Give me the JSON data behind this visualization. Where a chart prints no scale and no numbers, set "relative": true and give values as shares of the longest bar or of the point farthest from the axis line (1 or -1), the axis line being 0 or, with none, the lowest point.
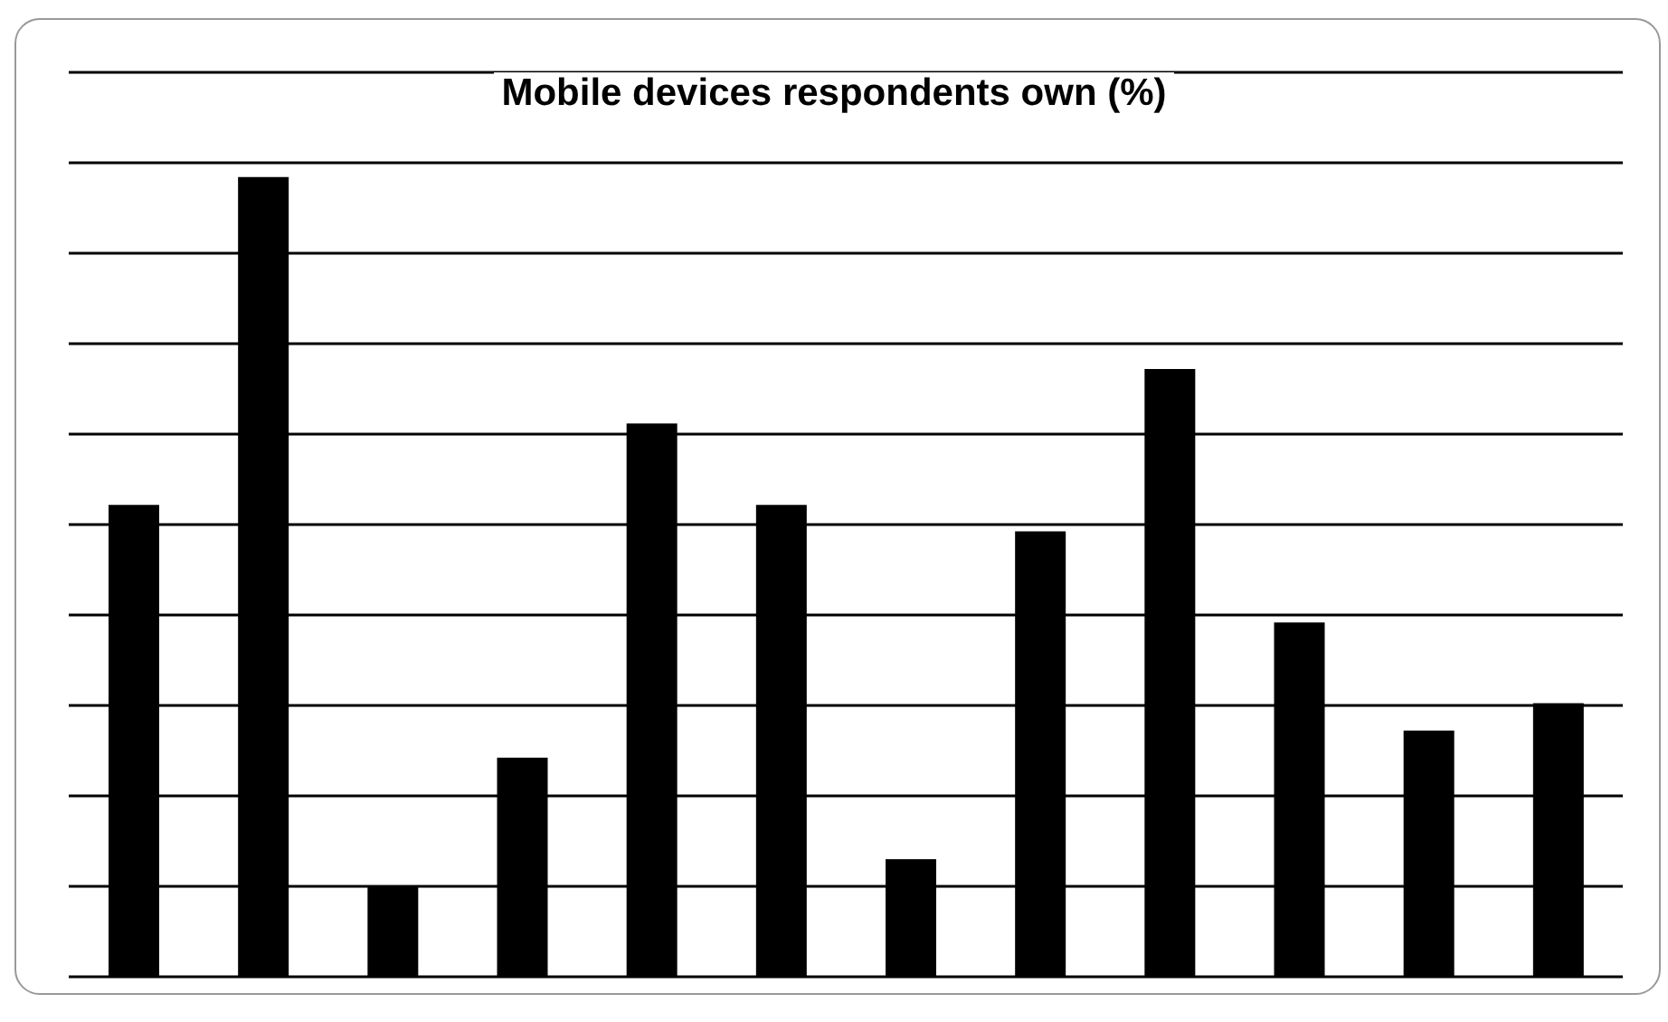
{
  "chart_data": {
    "type": "bar",
    "title": "Mobile devices respondents own (%)",
    "relative": true,
    "grid": "y",
    "categories": [
      null,
      null,
      null,
      null,
      null,
      null,
      null,
      null,
      null,
      null,
      null,
      null
    ],
    "values": [
      0.59,
      1,
      0.113,
      0.274,
      0.692,
      0.59,
      0.147,
      0.557,
      0.76,
      0.443,
      0.308,
      0.342
    ],
    "color": "#000000"
  }
}
